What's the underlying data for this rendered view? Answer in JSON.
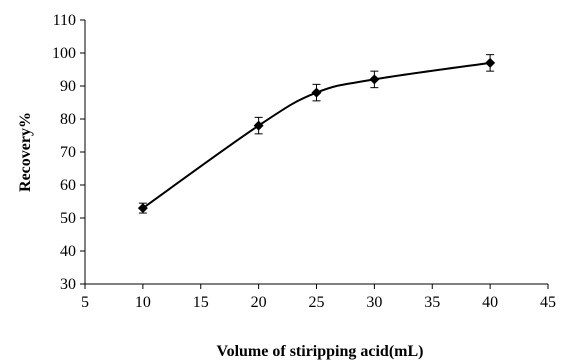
{
  "chart_data": {
    "type": "line",
    "xlabel": "Volume of stiripping acid(mL)",
    "ylabel": "Recovery%",
    "xlim": [
      5,
      45
    ],
    "ylim": [
      30,
      110
    ],
    "xticks": [
      5,
      10,
      15,
      20,
      25,
      30,
      35,
      40,
      45
    ],
    "yticks": [
      30,
      40,
      50,
      60,
      70,
      80,
      90,
      100,
      110
    ],
    "grid": false,
    "legend": "none",
    "marker": "diamond",
    "color": "#000000",
    "series": [
      {
        "x": [
          10,
          20,
          25,
          30,
          40
        ],
        "y": [
          53,
          78,
          88,
          92,
          97
        ],
        "error": [
          1.5,
          2.5,
          2.5,
          2.5,
          2.5
        ]
      }
    ]
  }
}
